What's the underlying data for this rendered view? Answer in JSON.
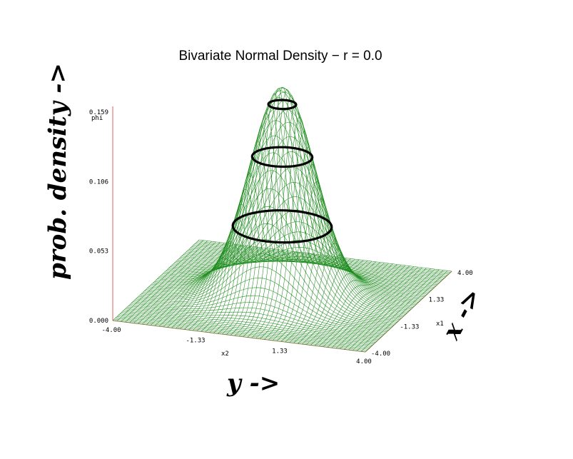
{
  "chart_data": {
    "type": "surface",
    "title": "Bivariate Normal Density − r = 0.0",
    "function": "bivariate standard normal, correlation r = 0.0",
    "zlabel": "phi",
    "xlabel": "x2",
    "ylabel": "x1",
    "xlim": [
      -4.0,
      4.0
    ],
    "ylim": [
      -4.0,
      4.0
    ],
    "zlim": [
      0.0,
      0.159
    ],
    "x_ticks": [
      "-4.00",
      "-1.33",
      "1.33",
      "4.00"
    ],
    "y_ticks": [
      "-4.00",
      "-1.33",
      "1.33",
      "4.00"
    ],
    "z_ticks": [
      "0.000",
      "0.053",
      "0.106",
      "0.159"
    ],
    "grid_points": 61,
    "peak_value": 0.159,
    "contour_levels": [
      0.053,
      0.106,
      0.146
    ],
    "surface_color": "#1e8c1e",
    "axis_color": "#e06060",
    "contour_color": "#000000",
    "annotations": [
      "prob. density ->",
      "y ->",
      "x ->"
    ]
  }
}
